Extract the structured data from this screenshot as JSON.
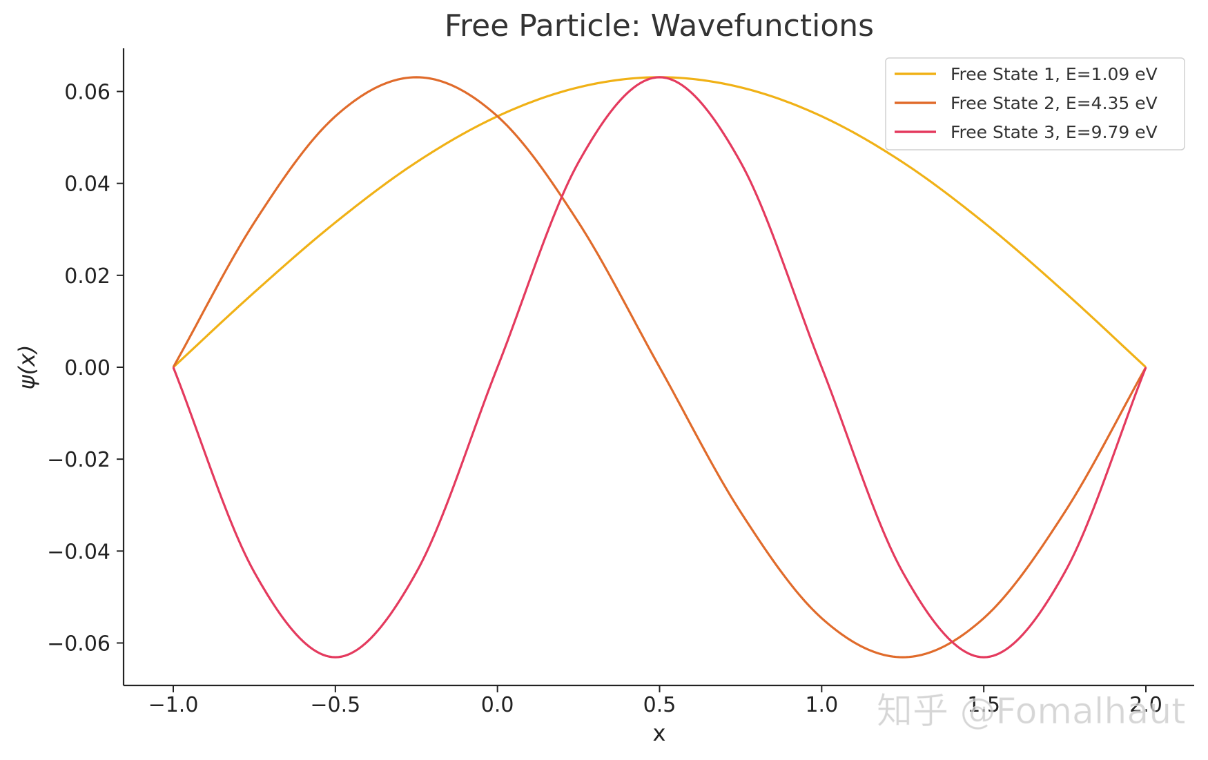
{
  "chart_data": {
    "type": "line",
    "title": "Free Particle: Wavefunctions",
    "xlabel": "x",
    "ylabel": "ψ(x)",
    "xlim": [
      -1.15,
      2.15
    ],
    "ylim": [
      -0.07,
      0.07
    ],
    "xticks": [
      -1.0,
      -0.5,
      0.0,
      0.5,
      1.0,
      1.5,
      2.0
    ],
    "xtick_labels": [
      "−1.0",
      "−0.5",
      "0.0",
      "0.5",
      "1.0",
      "1.5",
      "2.0"
    ],
    "yticks": [
      0.06,
      0.04,
      0.02,
      0.0,
      -0.02,
      -0.04,
      -0.06
    ],
    "ytick_labels": [
      "0.06",
      "0.04",
      "0.02",
      "0.00",
      "−0.02",
      "−0.04",
      "−0.06"
    ],
    "grid": false,
    "legend_position": "top-right",
    "series": [
      {
        "name": "Free State 1, E=1.09 eV",
        "color": "#F0B116",
        "x": [
          -1.0,
          -0.75,
          -0.5,
          -0.25,
          0.0,
          0.25,
          0.5,
          0.75,
          1.0,
          1.25,
          1.5,
          1.75,
          2.0
        ],
        "y": [
          0.0,
          0.0163,
          0.0315,
          0.0446,
          0.0546,
          0.0609,
          0.0631,
          0.0609,
          0.0546,
          0.0446,
          0.0315,
          0.0163,
          0.0
        ]
      },
      {
        "name": "Free State 2, E=4.35 eV",
        "color": "#E06B2B",
        "x": [
          -1.0,
          -0.75,
          -0.5,
          -0.25,
          0.0,
          0.25,
          0.5,
          0.75,
          1.0,
          1.25,
          1.5,
          1.75,
          2.0
        ],
        "y": [
          0.0,
          0.0315,
          0.0546,
          0.0631,
          0.0546,
          0.0315,
          0.0,
          -0.0315,
          -0.0546,
          -0.0631,
          -0.0546,
          -0.0315,
          0.0
        ]
      },
      {
        "name": "Free State 3, E=9.79 eV",
        "color": "#E43A5E",
        "x": [
          -1.0,
          -0.75,
          -0.5,
          -0.25,
          0.0,
          0.25,
          0.5,
          0.75,
          1.0,
          1.25,
          1.5,
          1.75,
          2.0
        ],
        "y": [
          0.0,
          -0.0446,
          -0.0631,
          -0.0446,
          0.0,
          0.0446,
          0.0631,
          0.0446,
          0.0,
          -0.0446,
          -0.0631,
          -0.0446,
          0.0
        ]
      }
    ]
  },
  "watermark": {
    "text": "知乎 @Fomalhaut"
  }
}
